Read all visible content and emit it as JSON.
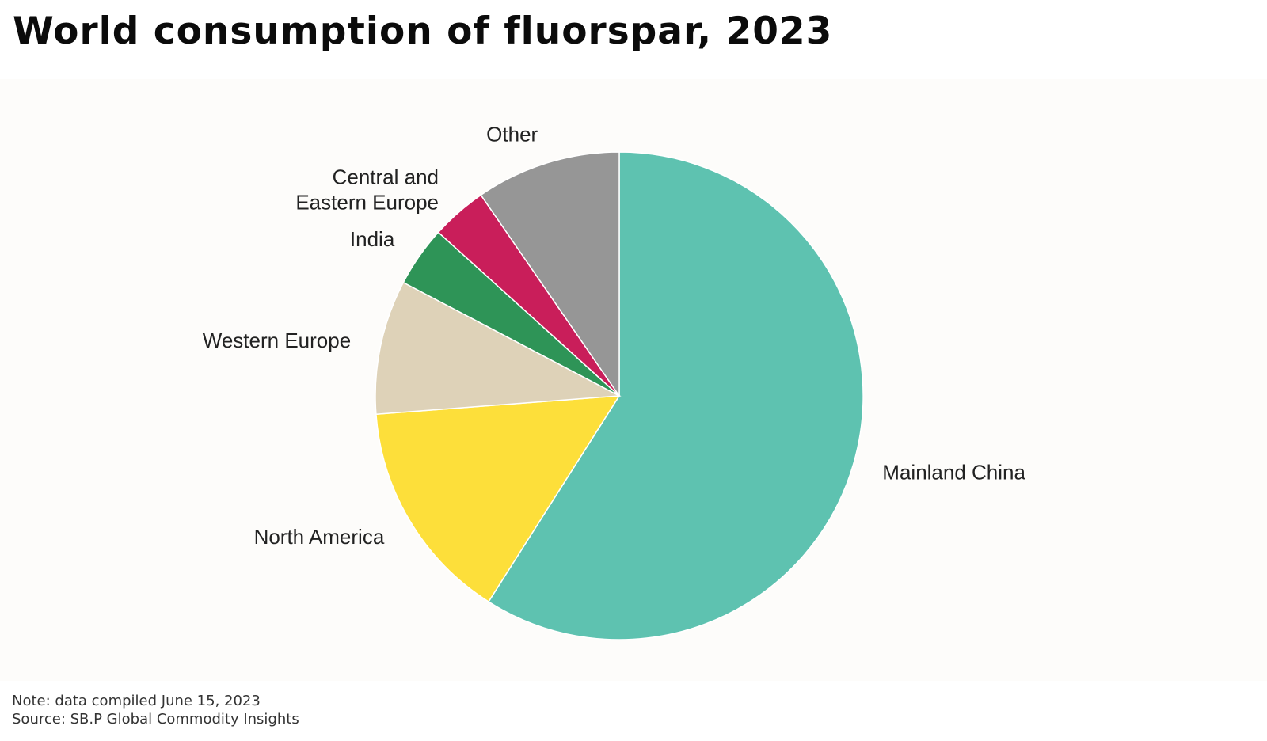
{
  "title": "World consumption of fluorspar, 2023",
  "footer": {
    "note": "Note: data compiled June 15, 2023",
    "source": "Source: SB.P Global Commodity Insights"
  },
  "chart_data": {
    "type": "pie",
    "title": "",
    "start_angle_deg": 0,
    "direction": "clockwise",
    "legend": "none",
    "slices": [
      {
        "label": "Mainland China",
        "value": 59.0,
        "color": "#5EC2B0"
      },
      {
        "label": "North America",
        "value": 14.8,
        "color": "#FDDF3A"
      },
      {
        "label": "Western Europe",
        "value": 8.9,
        "color": "#DED2B8"
      },
      {
        "label": "India",
        "value": 4.0,
        "color": "#2E9457"
      },
      {
        "label": "Central and Eastern Europe",
        "label_lines": [
          "Central and",
          "Eastern Europe"
        ],
        "value": 3.7,
        "color": "#C91E5A"
      },
      {
        "label": "Other",
        "value": 9.6,
        "color": "#969696"
      }
    ]
  }
}
